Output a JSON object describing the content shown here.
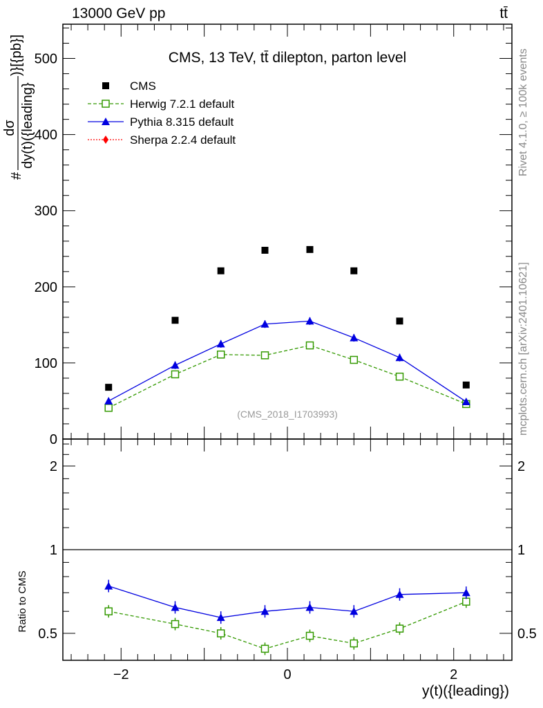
{
  "header": {
    "left": "13000 GeV pp",
    "right": "tt̄"
  },
  "side_label_top": "Rivet 4.1.0, ≥ 100k events",
  "side_label_bottom": "mcplots.cern.ch [arXiv:2401.10621]",
  "chart_data": [
    {
      "type": "scatter",
      "title": "CMS, 13 TeV, tt̄ dilepton, parton level",
      "annotation": "(CMS_2018_I1703993)",
      "ylabel_num": "dσ",
      "ylabel_den": "dy(t)({leading}",
      "ylabel_prefix": "#",
      "ylabel_suffix": ")}[{pb}]",
      "xlim": [
        -2.7,
        2.7
      ],
      "ylim": [
        0,
        545
      ],
      "yticks": [
        0,
        100,
        200,
        300,
        400,
        500
      ],
      "ytick_labels": [
        "0",
        "100",
        "200",
        "300",
        "400",
        "500"
      ],
      "legend_position": "top-left",
      "x": [
        -2.15,
        -1.35,
        -0.8,
        -0.27,
        0.27,
        0.8,
        1.35,
        2.15
      ],
      "series": [
        {
          "name": "CMS",
          "color": "#000000",
          "marker": "square",
          "values": [
            68,
            156,
            221,
            248,
            249,
            221,
            155,
            71
          ]
        },
        {
          "name": "Herwig 7.2.1 default",
          "color": "#339900",
          "marker": "open-square",
          "line": "dashed",
          "values": [
            41,
            85,
            111,
            110,
            123,
            104,
            82,
            46
          ],
          "errors": [
            4,
            4,
            5,
            5,
            5,
            5,
            4,
            4
          ]
        },
        {
          "name": "Pythia 8.315 default",
          "color": "#0000e0",
          "marker": "triangle",
          "line": "solid",
          "values": [
            50,
            97,
            125,
            151,
            155,
            133,
            107,
            49
          ],
          "errors": [
            4,
            5,
            5,
            5,
            5,
            5,
            5,
            4
          ]
        },
        {
          "name": "Sherpa 2.2.4 default",
          "color": "#ff0000",
          "marker": "diamond",
          "line": "dotted",
          "values": []
        }
      ]
    },
    {
      "type": "line",
      "ylabel": "Ratio to CMS",
      "xlabel": "y(t)({leading})",
      "yscale": "log",
      "xlim": [
        -2.7,
        2.7
      ],
      "ylim": [
        0.4,
        2.5
      ],
      "yticks": [
        0.5,
        1,
        2
      ],
      "ytick_labels": [
        "0.5",
        "1",
        "2"
      ],
      "xticks": [
        -2,
        0,
        2
      ],
      "xtick_labels": [
        "−2",
        "0",
        "2"
      ],
      "x": [
        -2.15,
        -1.35,
        -0.8,
        -0.27,
        0.27,
        0.8,
        1.35,
        2.15
      ],
      "series": [
        {
          "name": "Herwig 7.2.1 default",
          "color": "#339900",
          "values": [
            0.6,
            0.54,
            0.5,
            0.44,
            0.49,
            0.46,
            0.52,
            0.65
          ]
        },
        {
          "name": "Pythia 8.315 default",
          "color": "#0000e0",
          "values": [
            0.74,
            0.62,
            0.57,
            0.6,
            0.62,
            0.6,
            0.69,
            0.7
          ]
        }
      ]
    }
  ]
}
